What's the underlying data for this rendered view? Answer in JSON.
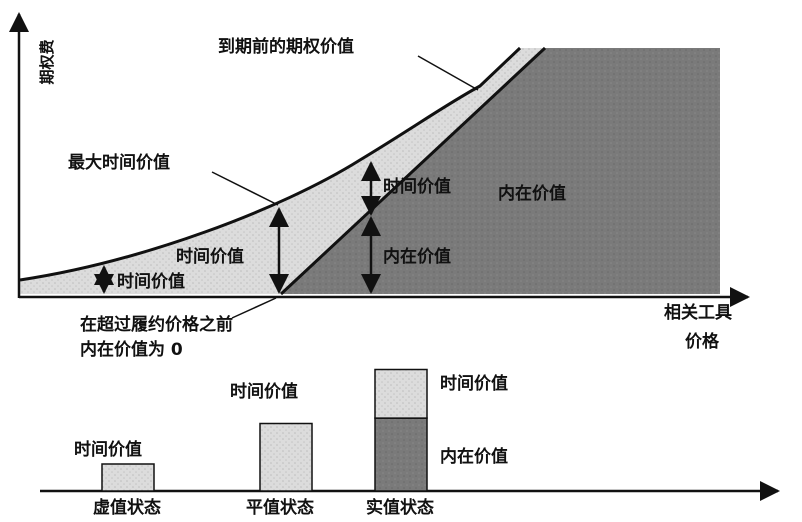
{
  "top_chart": {
    "y_axis_label": "期权费",
    "x_axis_label_line1": "相关工具",
    "x_axis_label_line2": "价格",
    "curve_label": "到期前的期权价值",
    "max_time_value_label": "最大时间价值",
    "left_time_value_label": "时间价值",
    "mid_time_value_label": "时间价值",
    "right_time_value_label": "时间价值",
    "right_intrinsic_label": "内在价值",
    "region_intrinsic_label": "内在价值",
    "strike_note_line1": "在超过履约价格之前",
    "strike_note_line2": "内在价值为 0"
  },
  "bottom_chart": {
    "bars": [
      {
        "state": "虚值状态",
        "time_label": "时间价值",
        "time_value": 1.0,
        "intrinsic_value": 0
      },
      {
        "state": "平值状态",
        "time_label": "时间价值",
        "time_value": 2.5,
        "intrinsic_value": 0
      },
      {
        "state": "实值状态",
        "time_label": "时间价值",
        "time_value": 1.8,
        "intrinsic_label": "内在价值",
        "intrinsic_value": 2.7
      }
    ]
  },
  "colors": {
    "line": "#111111",
    "time_fill": "#d2d2d2",
    "intrinsic_fill": "#7a7a7a"
  }
}
